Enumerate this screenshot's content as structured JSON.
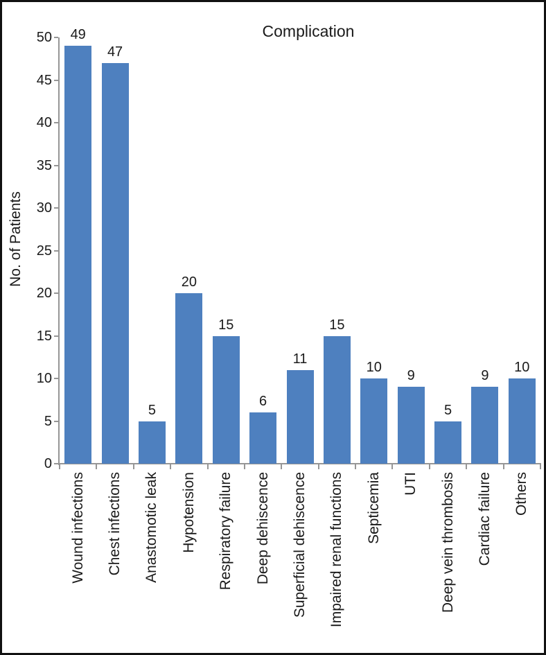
{
  "chart_data": {
    "type": "bar",
    "title": "Complication",
    "xlabel": "",
    "ylabel": "No. of Patients",
    "categories": [
      "Wound infections",
      "Chest infections",
      "Anastomotic leak",
      "Hypotension",
      "Respiratory failure",
      "Deep dehiscence",
      "Superficial dehiscence",
      "Impaired renal functions",
      "Septicemia",
      "UTI",
      "Deep vein thrombosis",
      "Cardiac failure",
      "Others"
    ],
    "values": [
      49,
      47,
      5,
      20,
      15,
      6,
      11,
      15,
      10,
      9,
      5,
      9,
      10
    ],
    "data_labels": [
      "49",
      "47",
      "5",
      "20",
      "15",
      "6",
      "11",
      "15",
      "10",
      "9",
      "5",
      "9",
      "10"
    ],
    "yticks": [
      0,
      5,
      10,
      15,
      20,
      25,
      30,
      35,
      40,
      45,
      50
    ],
    "ylim": [
      0,
      50
    ],
    "grid": false,
    "legend_position": "none",
    "colors": {
      "bar": "#4e80bf",
      "axis": "#969696",
      "text": "#1a1a1a",
      "frame": "#111111",
      "background": "#ffffff"
    }
  }
}
